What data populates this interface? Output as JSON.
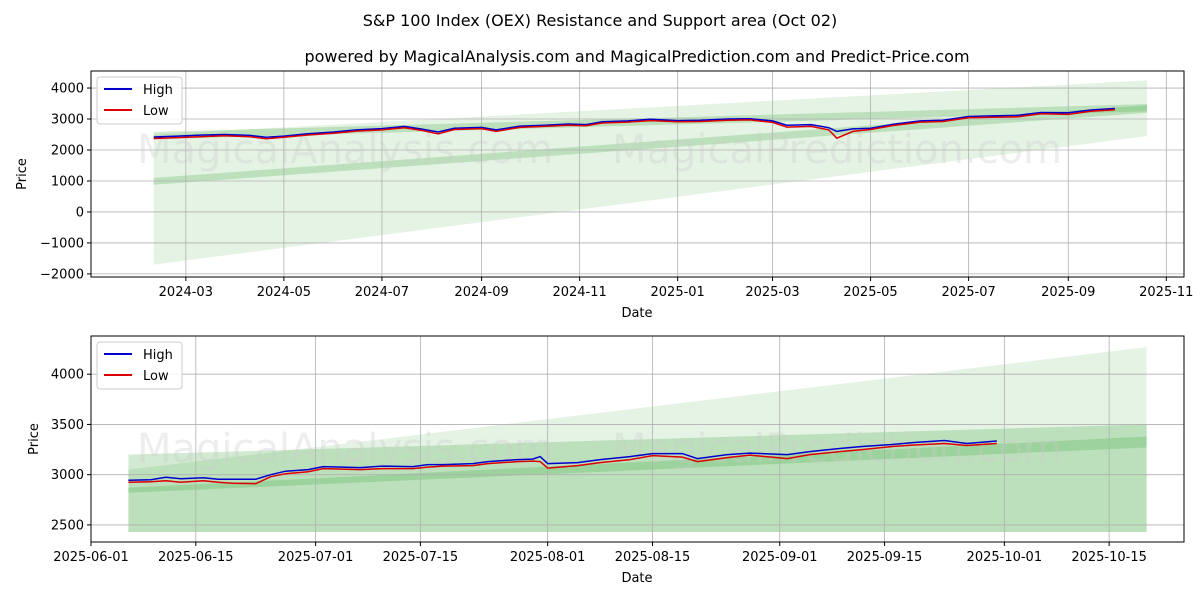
{
  "title": "S&P 100 Index (OEX) Resistance and Support area (Oct 02)",
  "subtitle": "powered by MagicalAnalysis.com and MagicalPrediction.com and Predict-Price.com",
  "watermarks": [
    "MagicalAnalysis.com",
    "MagicalPrediction.com"
  ],
  "colors": {
    "high": "#0000cc",
    "low": "#dd0000",
    "band": "#2ca02c"
  },
  "chart_data": [
    {
      "type": "line",
      "name": "full-period",
      "xlabel": "Date",
      "ylabel": "Price",
      "xlim": [
        "2024-01-02",
        "2025-11-12"
      ],
      "ylim": [
        -2100,
        4550
      ],
      "xticks": [
        "2024-03",
        "2024-05",
        "2024-07",
        "2024-09",
        "2024-11",
        "2025-01",
        "2025-03",
        "2025-05",
        "2025-07",
        "2025-09",
        "2025-11"
      ],
      "xtick_dates": [
        "2024-03-01",
        "2024-05-01",
        "2024-07-01",
        "2024-09-01",
        "2024-11-01",
        "2025-01-01",
        "2025-03-01",
        "2025-05-01",
        "2025-07-01",
        "2025-09-01",
        "2025-11-01"
      ],
      "yticks": [
        -2000,
        -1000,
        0,
        1000,
        2000,
        3000,
        4000
      ],
      "grid": true,
      "legend": "top-left",
      "series": [
        {
          "name": "High",
          "x": [
            "2024-02-10",
            "2024-02-25",
            "2024-03-10",
            "2024-03-25",
            "2024-04-10",
            "2024-04-20",
            "2024-05-01",
            "2024-05-15",
            "2024-06-01",
            "2024-06-15",
            "2024-07-01",
            "2024-07-15",
            "2024-07-25",
            "2024-08-05",
            "2024-08-15",
            "2024-09-01",
            "2024-09-10",
            "2024-09-25",
            "2024-10-10",
            "2024-10-25",
            "2024-11-05",
            "2024-11-15",
            "2024-12-01",
            "2024-12-15",
            "2025-01-01",
            "2025-01-15",
            "2025-02-01",
            "2025-02-15",
            "2025-03-01",
            "2025-03-10",
            "2025-03-25",
            "2025-04-05",
            "2025-04-10",
            "2025-04-20",
            "2025-05-01",
            "2025-05-15",
            "2025-06-01",
            "2025-06-15",
            "2025-07-01",
            "2025-07-15",
            "2025-08-01",
            "2025-08-15",
            "2025-09-01",
            "2025-09-15",
            "2025-09-30"
          ],
          "values": [
            2420,
            2450,
            2480,
            2500,
            2470,
            2410,
            2450,
            2520,
            2580,
            2650,
            2690,
            2760,
            2680,
            2580,
            2700,
            2730,
            2650,
            2770,
            2800,
            2840,
            2820,
            2910,
            2940,
            2990,
            2950,
            2960,
            3000,
            3010,
            2940,
            2800,
            2820,
            2720,
            2600,
            2680,
            2700,
            2830,
            2940,
            2960,
            3080,
            3100,
            3120,
            3210,
            3200,
            3290,
            3340
          ]
        },
        {
          "name": "Low",
          "x": [
            "2024-02-10",
            "2024-02-25",
            "2024-03-10",
            "2024-03-25",
            "2024-04-10",
            "2024-04-20",
            "2024-05-01",
            "2024-05-15",
            "2024-06-01",
            "2024-06-15",
            "2024-07-01",
            "2024-07-15",
            "2024-07-25",
            "2024-08-05",
            "2024-08-15",
            "2024-09-01",
            "2024-09-10",
            "2024-09-25",
            "2024-10-10",
            "2024-10-25",
            "2024-11-05",
            "2024-11-15",
            "2024-12-01",
            "2024-12-15",
            "2025-01-01",
            "2025-01-15",
            "2025-02-01",
            "2025-02-15",
            "2025-03-01",
            "2025-03-10",
            "2025-03-25",
            "2025-04-05",
            "2025-04-10",
            "2025-04-20",
            "2025-05-01",
            "2025-05-15",
            "2025-06-01",
            "2025-06-15",
            "2025-07-01",
            "2025-07-15",
            "2025-08-01",
            "2025-08-15",
            "2025-09-01",
            "2025-09-15",
            "2025-09-30"
          ],
          "values": [
            2370,
            2400,
            2430,
            2460,
            2430,
            2360,
            2410,
            2480,
            2540,
            2610,
            2650,
            2720,
            2640,
            2520,
            2660,
            2690,
            2600,
            2730,
            2760,
            2800,
            2780,
            2870,
            2900,
            2950,
            2910,
            2920,
            2960,
            2970,
            2890,
            2740,
            2760,
            2650,
            2380,
            2600,
            2660,
            2790,
            2900,
            2920,
            3040,
            3060,
            3070,
            3170,
            3150,
            3250,
            3300
          ]
        }
      ],
      "bands": [
        {
          "name": "wide-support-band",
          "x": [
            "2024-02-10",
            "2025-10-20"
          ],
          "lower": [
            -1700,
            2450
          ],
          "upper": [
            2500,
            4250
          ]
        },
        {
          "name": "resistance-band",
          "x": [
            "2024-02-10",
            "2025-10-20"
          ],
          "lower": [
            2350,
            3250
          ],
          "upper": [
            2580,
            3480
          ]
        },
        {
          "name": "support-band",
          "x": [
            "2024-02-10",
            "2025-10-20"
          ],
          "lower": [
            880,
            3200
          ],
          "upper": [
            1100,
            3450
          ]
        }
      ]
    },
    {
      "type": "line",
      "name": "recent-period",
      "xlabel": "Date",
      "ylabel": "Price",
      "xlim": [
        "2025-06-01",
        "2025-10-25"
      ],
      "ylim": [
        2330,
        4380
      ],
      "xticks": [
        "2025-06-01",
        "2025-06-15",
        "2025-07-01",
        "2025-07-15",
        "2025-08-01",
        "2025-08-15",
        "2025-09-01",
        "2025-09-15",
        "2025-10-01",
        "2025-10-15"
      ],
      "yticks": [
        2500,
        3000,
        3500,
        4000
      ],
      "grid": true,
      "legend": "top-left",
      "series": [
        {
          "name": "High",
          "x": [
            "2025-06-06",
            "2025-06-09",
            "2025-06-11",
            "2025-06-13",
            "2025-06-16",
            "2025-06-18",
            "2025-06-20",
            "2025-06-23",
            "2025-06-25",
            "2025-06-27",
            "2025-06-30",
            "2025-07-02",
            "2025-07-07",
            "2025-07-10",
            "2025-07-14",
            "2025-07-16",
            "2025-07-18",
            "2025-07-22",
            "2025-07-24",
            "2025-07-28",
            "2025-07-30",
            "2025-07-31",
            "2025-08-01",
            "2025-08-05",
            "2025-08-08",
            "2025-08-12",
            "2025-08-15",
            "2025-08-19",
            "2025-08-21",
            "2025-08-25",
            "2025-08-28",
            "2025-09-02",
            "2025-09-05",
            "2025-09-09",
            "2025-09-12",
            "2025-09-16",
            "2025-09-19",
            "2025-09-23",
            "2025-09-26",
            "2025-09-30"
          ],
          "values": [
            2945,
            2950,
            2975,
            2960,
            2970,
            2955,
            2955,
            2955,
            3000,
            3035,
            3050,
            3080,
            3070,
            3085,
            3080,
            3100,
            3100,
            3110,
            3130,
            3150,
            3155,
            3180,
            3110,
            3120,
            3150,
            3180,
            3210,
            3210,
            3160,
            3200,
            3215,
            3200,
            3230,
            3260,
            3280,
            3300,
            3320,
            3340,
            3310,
            3335
          ]
        },
        {
          "name": "Low",
          "x": [
            "2025-06-06",
            "2025-06-09",
            "2025-06-11",
            "2025-06-13",
            "2025-06-16",
            "2025-06-18",
            "2025-06-20",
            "2025-06-23",
            "2025-06-25",
            "2025-06-27",
            "2025-06-30",
            "2025-07-02",
            "2025-07-07",
            "2025-07-10",
            "2025-07-14",
            "2025-07-16",
            "2025-07-18",
            "2025-07-22",
            "2025-07-24",
            "2025-07-28",
            "2025-07-30",
            "2025-07-31",
            "2025-08-01",
            "2025-08-05",
            "2025-08-08",
            "2025-08-12",
            "2025-08-15",
            "2025-08-19",
            "2025-08-21",
            "2025-08-25",
            "2025-08-28",
            "2025-09-02",
            "2025-09-05",
            "2025-09-09",
            "2025-09-12",
            "2025-09-16",
            "2025-09-19",
            "2025-09-23",
            "2025-09-26",
            "2025-09-30"
          ],
          "values": [
            2925,
            2930,
            2940,
            2925,
            2940,
            2925,
            2915,
            2910,
            2980,
            3010,
            3030,
            3060,
            3050,
            3060,
            3060,
            3075,
            3085,
            3090,
            3110,
            3130,
            3135,
            3130,
            3065,
            3090,
            3120,
            3150,
            3190,
            3175,
            3130,
            3170,
            3195,
            3160,
            3200,
            3230,
            3250,
            3280,
            3295,
            3310,
            3290,
            3310
          ]
        }
      ],
      "bands": [
        {
          "name": "wide-support-band",
          "x": [
            "2025-06-06",
            "2025-10-20"
          ],
          "lower": [
            2430,
            2430
          ],
          "upper": [
            3050,
            4270
          ]
        },
        {
          "name": "resistance-band",
          "x": [
            "2025-06-06",
            "2025-10-20"
          ],
          "lower": [
            2430,
            2430
          ],
          "upper": [
            3200,
            3500
          ]
        },
        {
          "name": "support-band",
          "x": [
            "2025-06-06",
            "2025-10-20"
          ],
          "lower": [
            2820,
            3270
          ],
          "upper": [
            2870,
            3380
          ]
        }
      ]
    }
  ]
}
